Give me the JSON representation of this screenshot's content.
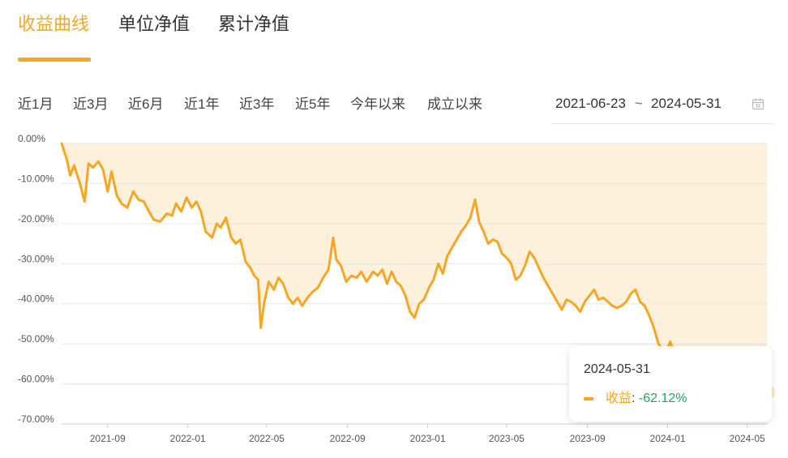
{
  "tabs": [
    {
      "label": "收益曲线",
      "active": true
    },
    {
      "label": "单位净值",
      "active": false
    },
    {
      "label": "累计净值",
      "active": false
    }
  ],
  "range_buttons": [
    "近1月",
    "近3月",
    "近6月",
    "近1年",
    "近3年",
    "近5年",
    "今年以来",
    "成立以来"
  ],
  "date_range": {
    "start": "2021-06-23",
    "separator": "~",
    "end": "2024-05-31",
    "icon": "calendar-icon"
  },
  "colors": {
    "accent": "#f5a623",
    "area_fill": "#fdf1dc",
    "negative_value": "#27a35a",
    "grid": "#e6e6e6"
  },
  "tooltip": {
    "date": "2024-05-31",
    "label": "收益",
    "value": "-62.12%"
  },
  "chart_data": {
    "type": "area",
    "title": "",
    "xlabel": "",
    "ylabel": "",
    "y_unit": "%",
    "ylim": [
      -70,
      0
    ],
    "yticks": [
      "0.00%",
      "-10.00%",
      "-20.00%",
      "-30.00%",
      "-40.00%",
      "-50.00%",
      "-60.00%",
      "-70.00%"
    ],
    "xticks": [
      "2021-09",
      "2022-01",
      "2022-05",
      "2022-09",
      "2023-01",
      "2023-05",
      "2023-09",
      "2024-01",
      "2024-05"
    ],
    "x_range": [
      "2021-06-23",
      "2024-05-31"
    ],
    "grid": true,
    "series": [
      {
        "name": "收益",
        "points": [
          [
            "2021-06-23",
            0.0
          ],
          [
            "2021-07-01",
            -4.0
          ],
          [
            "2021-07-06",
            -8.0
          ],
          [
            "2021-07-12",
            -5.5
          ],
          [
            "2021-07-20",
            -9.5
          ],
          [
            "2021-07-28",
            -14.5
          ],
          [
            "2021-08-03",
            -5.0
          ],
          [
            "2021-08-10",
            -6.0
          ],
          [
            "2021-08-18",
            -4.5
          ],
          [
            "2021-08-25",
            -6.5
          ],
          [
            "2021-09-01",
            -12.0
          ],
          [
            "2021-09-07",
            -7.0
          ],
          [
            "2021-09-15",
            -13.0
          ],
          [
            "2021-09-22",
            -15.0
          ],
          [
            "2021-10-01",
            -16.0
          ],
          [
            "2021-10-10",
            -12.0
          ],
          [
            "2021-10-18",
            -14.0
          ],
          [
            "2021-10-26",
            -14.5
          ],
          [
            "2021-11-03",
            -17.0
          ],
          [
            "2021-11-10",
            -19.0
          ],
          [
            "2021-11-20",
            -19.5
          ],
          [
            "2021-11-30",
            -17.5
          ],
          [
            "2021-12-08",
            -18.0
          ],
          [
            "2021-12-14",
            -15.0
          ],
          [
            "2021-12-22",
            -17.0
          ],
          [
            "2021-12-30",
            -13.5
          ],
          [
            "2022-01-07",
            -16.0
          ],
          [
            "2022-01-14",
            -14.5
          ],
          [
            "2022-01-21",
            -17.0
          ],
          [
            "2022-01-28",
            -22.0
          ],
          [
            "2022-02-07",
            -23.5
          ],
          [
            "2022-02-14",
            -20.0
          ],
          [
            "2022-02-20",
            -21.0
          ],
          [
            "2022-02-28",
            -18.5
          ],
          [
            "2022-03-08",
            -23.5
          ],
          [
            "2022-03-15",
            -25.0
          ],
          [
            "2022-03-22",
            -24.0
          ],
          [
            "2022-03-30",
            -29.5
          ],
          [
            "2022-04-06",
            -31.0
          ],
          [
            "2022-04-12",
            -33.0
          ],
          [
            "2022-04-18",
            -34.0
          ],
          [
            "2022-04-22",
            -46.0
          ],
          [
            "2022-04-27",
            -40.0
          ],
          [
            "2022-05-04",
            -34.5
          ],
          [
            "2022-05-12",
            -36.5
          ],
          [
            "2022-05-19",
            -33.5
          ],
          [
            "2022-05-26",
            -35.0
          ],
          [
            "2022-06-03",
            -38.5
          ],
          [
            "2022-06-10",
            -40.0
          ],
          [
            "2022-06-17",
            -38.5
          ],
          [
            "2022-06-24",
            -40.5
          ],
          [
            "2022-07-02",
            -38.5
          ],
          [
            "2022-07-10",
            -37.0
          ],
          [
            "2022-07-18",
            -36.0
          ],
          [
            "2022-07-26",
            -33.5
          ],
          [
            "2022-08-03",
            -31.5
          ],
          [
            "2022-08-10",
            -23.5
          ],
          [
            "2022-08-15",
            -29.0
          ],
          [
            "2022-08-22",
            -30.5
          ],
          [
            "2022-08-30",
            -34.5
          ],
          [
            "2022-09-07",
            -33.0
          ],
          [
            "2022-09-15",
            -33.5
          ],
          [
            "2022-09-22",
            -32.0
          ],
          [
            "2022-09-30",
            -34.5
          ],
          [
            "2022-10-10",
            -32.0
          ],
          [
            "2022-10-17",
            -33.0
          ],
          [
            "2022-10-24",
            -31.5
          ],
          [
            "2022-10-31",
            -35.0
          ],
          [
            "2022-11-07",
            -32.0
          ],
          [
            "2022-11-14",
            -34.5
          ],
          [
            "2022-11-21",
            -35.5
          ],
          [
            "2022-11-28",
            -38.0
          ],
          [
            "2022-12-05",
            -42.0
          ],
          [
            "2022-12-12",
            -43.5
          ],
          [
            "2022-12-19",
            -40.0
          ],
          [
            "2022-12-26",
            -39.0
          ],
          [
            "2023-01-03",
            -36.0
          ],
          [
            "2023-01-10",
            -34.0
          ],
          [
            "2023-01-17",
            -30.0
          ],
          [
            "2023-01-24",
            -32.5
          ],
          [
            "2023-01-31",
            -28.0
          ],
          [
            "2023-02-07",
            -26.0
          ],
          [
            "2023-02-14",
            -24.0
          ],
          [
            "2023-02-21",
            -22.0
          ],
          [
            "2023-02-28",
            -20.5
          ],
          [
            "2023-03-07",
            -18.5
          ],
          [
            "2023-03-14",
            -14.0
          ],
          [
            "2023-03-20",
            -19.5
          ],
          [
            "2023-03-27",
            -22.0
          ],
          [
            "2023-04-03",
            -25.0
          ],
          [
            "2023-04-10",
            -24.0
          ],
          [
            "2023-04-17",
            -24.5
          ],
          [
            "2023-04-24",
            -27.5
          ],
          [
            "2023-05-01",
            -28.5
          ],
          [
            "2023-05-08",
            -30.0
          ],
          [
            "2023-05-15",
            -34.0
          ],
          [
            "2023-05-22",
            -33.0
          ],
          [
            "2023-05-29",
            -30.5
          ],
          [
            "2023-06-05",
            -27.0
          ],
          [
            "2023-06-12",
            -28.5
          ],
          [
            "2023-06-19",
            -31.0
          ],
          [
            "2023-06-26",
            -33.5
          ],
          [
            "2023-07-03",
            -35.5
          ],
          [
            "2023-07-10",
            -37.5
          ],
          [
            "2023-07-17",
            -39.5
          ],
          [
            "2023-07-24",
            -41.5
          ],
          [
            "2023-07-31",
            -39.0
          ],
          [
            "2023-08-07",
            -39.5
          ],
          [
            "2023-08-14",
            -40.5
          ],
          [
            "2023-08-21",
            -42.0
          ],
          [
            "2023-08-28",
            -39.5
          ],
          [
            "2023-09-04",
            -38.0
          ],
          [
            "2023-09-11",
            -36.5
          ],
          [
            "2023-09-18",
            -39.0
          ],
          [
            "2023-09-25",
            -38.5
          ],
          [
            "2023-10-09",
            -40.5
          ],
          [
            "2023-10-16",
            -41.0
          ],
          [
            "2023-10-23",
            -40.5
          ],
          [
            "2023-10-30",
            -39.5
          ],
          [
            "2023-11-06",
            -37.5
          ],
          [
            "2023-11-13",
            -36.5
          ],
          [
            "2023-11-20",
            -39.5
          ],
          [
            "2023-11-27",
            -40.5
          ],
          [
            "2023-12-04",
            -43.0
          ],
          [
            "2023-12-11",
            -46.0
          ],
          [
            "2023-12-18",
            -50.0
          ],
          [
            "2023-12-22",
            -51.0
          ],
          [
            "2023-12-25",
            -53.0
          ],
          [
            "2023-12-29",
            -52.0
          ],
          [
            "2024-01-05",
            -49.5
          ],
          [
            "2024-01-12",
            -53.0
          ],
          [
            "2024-01-19",
            -56.5
          ],
          [
            "2024-01-26",
            -59.0
          ],
          [
            "2024-02-02",
            -61.0
          ],
          [
            "2024-02-08",
            -59.0
          ],
          [
            "2024-02-20",
            -57.5
          ],
          [
            "2024-02-27",
            -55.5
          ],
          [
            "2024-03-05",
            -56.5
          ],
          [
            "2024-03-12",
            -55.0
          ],
          [
            "2024-03-19",
            -56.0
          ],
          [
            "2024-03-26",
            -58.0
          ],
          [
            "2024-04-02",
            -56.5
          ],
          [
            "2024-04-09",
            -57.5
          ],
          [
            "2024-04-16",
            -59.5
          ],
          [
            "2024-04-23",
            -61.0
          ],
          [
            "2024-04-30",
            -59.5
          ],
          [
            "2024-05-08",
            -58.5
          ],
          [
            "2024-05-15",
            -60.0
          ],
          [
            "2024-05-22",
            -60.5
          ],
          [
            "2024-05-28",
            -61.5
          ],
          [
            "2024-05-31",
            -62.12
          ]
        ]
      }
    ]
  }
}
